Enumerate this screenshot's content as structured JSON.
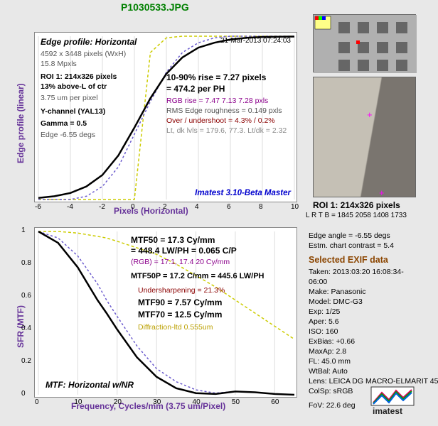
{
  "filename": "P1030533.JPG",
  "chart1": {
    "title": "Edge profile: Horizontal",
    "timestamp": "21-Mar-2013 07:24:03",
    "sensor": "4592 x 3448 pixels (WxH)",
    "mpx": "15.8 Mpxls",
    "roi": "ROI 1:  214x326 pixels",
    "pos": "13%  above-L of ctr",
    "umpx": "3.75 um per pixel",
    "ychan": "Y-channel  (YAL13)",
    "gamma": "Gamma = 0.5",
    "edge": "Edge -6.55 degs",
    "rise1": "10-90% rise = 7.27 pixels",
    "rise2": "= 474.2 per PH",
    "rgb": "RGB rise = 7.47  7.13  7.28 pxls",
    "rms": "RMS Edge roughness = 0.149 pxls",
    "over": "Over / undershoot = 4.3% / 0.2%",
    "ltdk": "Lt, dk lvls = 179.6, 77.3.  Lt/dk = 2.32",
    "version": "Imatest 3.10-Beta Master",
    "ylabel": "Edge profile (linear)",
    "xlabel": "Pixels (Horizontal)",
    "xlim": [
      -6,
      10
    ],
    "ylim": [
      0,
      1
    ],
    "xticks": [
      -6,
      -4,
      -2,
      0,
      2,
      4,
      6,
      8,
      10
    ],
    "curve_x": [
      -6,
      -5,
      -4,
      -3,
      -2,
      -1,
      0,
      1,
      2,
      3,
      4,
      5,
      6,
      7,
      8,
      9,
      10
    ],
    "curve_y": [
      0.01,
      0.02,
      0.04,
      0.08,
      0.15,
      0.27,
      0.44,
      0.62,
      0.77,
      0.87,
      0.93,
      0.96,
      0.98,
      0.99,
      0.995,
      0.997,
      0.998
    ],
    "curve_color": "#000000",
    "dotted_y": [
      0.0,
      0.0,
      0.0,
      0.02,
      0.08,
      0.2,
      0.4,
      0.6,
      0.78,
      0.9,
      0.96,
      0.99,
      1.0,
      1.0,
      1.0,
      1.0,
      1.0
    ],
    "dotted_color": "#6a5acd",
    "yellow_y": [
      0.0,
      0.0,
      0.0,
      0.0,
      0.0,
      0.0,
      0.0,
      0.9,
      0.99,
      1.0,
      1.0,
      1.0,
      1.0,
      1.0,
      1.0,
      1.0,
      1.0
    ],
    "yellow_color": "#cccc00"
  },
  "chart2": {
    "mtf50a": "MTF50 = 17.3 Cy/mm",
    "mtf50b": "= 448.4 LW/PH = 0.065 C/P",
    "rgb": "(RGB) = 17.1,  17.4  20 Cy/mm",
    "mtf50p": "MTF50P = 17.2 C/mm = 445.6 LW/PH",
    "under": "Undersharpening = 21.3%",
    "mtf90": "MTF90 = 7.57 Cy/mm",
    "mtf70": "MTF70 = 12.5 Cy/mm",
    "diff": "Diffraction-ltd  0.555um",
    "subtitle": "MTF: Horizontal w/NR",
    "ylabel": "SFR (MTF)",
    "xlabel": "Frequency, Cycles/mm  (3.75 um/Pixel)",
    "xlim": [
      0,
      65
    ],
    "ylim": [
      0,
      1
    ],
    "xticks": [
      0,
      10,
      20,
      30,
      40,
      50,
      60
    ],
    "yticks": [
      0,
      0.2,
      0.4,
      0.6,
      0.8,
      1
    ],
    "curve_x": [
      0,
      5,
      10,
      15,
      17.3,
      20,
      25,
      30,
      35,
      40,
      45,
      50,
      55,
      60,
      65
    ],
    "curve_y": [
      1.0,
      0.93,
      0.78,
      0.58,
      0.5,
      0.4,
      0.23,
      0.11,
      0.04,
      0.01,
      0.005,
      0.02,
      0.015,
      0.005,
      0.0
    ],
    "curve_color": "#000000",
    "dotted_y": [
      1.0,
      0.96,
      0.85,
      0.68,
      0.58,
      0.48,
      0.3,
      0.16,
      0.08,
      0.03,
      0.01,
      0.02,
      0.015,
      0.005,
      0.0
    ],
    "dotted_color": "#6a5acd",
    "yellow_y": [
      1.0,
      1.0,
      0.99,
      0.97,
      0.96,
      0.94,
      0.9,
      0.86,
      0.8,
      0.73,
      0.66,
      0.58,
      0.5,
      0.42,
      0.34
    ],
    "yellow_color": "#cccc00"
  },
  "roi": {
    "label": "ROI 1:  214x326 pixels",
    "sub": "L R  T B = 1845 2058  1408 1733"
  },
  "exif": {
    "edge_angle": "Edge angle = -6.55 degs",
    "contrast": "Estm. chart contrast = 5.4",
    "title": "Selected EXIF data",
    "taken": "Taken:  2013:03:20 16:08:34-06:00",
    "make": "Make:  Panasonic",
    "model": "Model:  DMC-G3",
    "exp": "Exp:    1/25",
    "aper": "Aper:   5.6",
    "iso": "ISO:    160",
    "exbias": "ExBias: +0.66",
    "maxap": "MaxAp: 2.8",
    "fl": "FL:     45.0  mm",
    "wtbal": "WtBal: Auto",
    "lens": "Lens:  LEICA DG MACRO-ELMARIT 45",
    "colsp": "ColSp: sRGB",
    "fov": "FoV:   22.6 deg"
  },
  "colors": {
    "bg": "#e8e8e8",
    "purple": "#663399",
    "green": "#008000",
    "darkred": "#8b0000",
    "blue": "#0000cd",
    "red": "#cc0000",
    "gray": "#888888"
  }
}
